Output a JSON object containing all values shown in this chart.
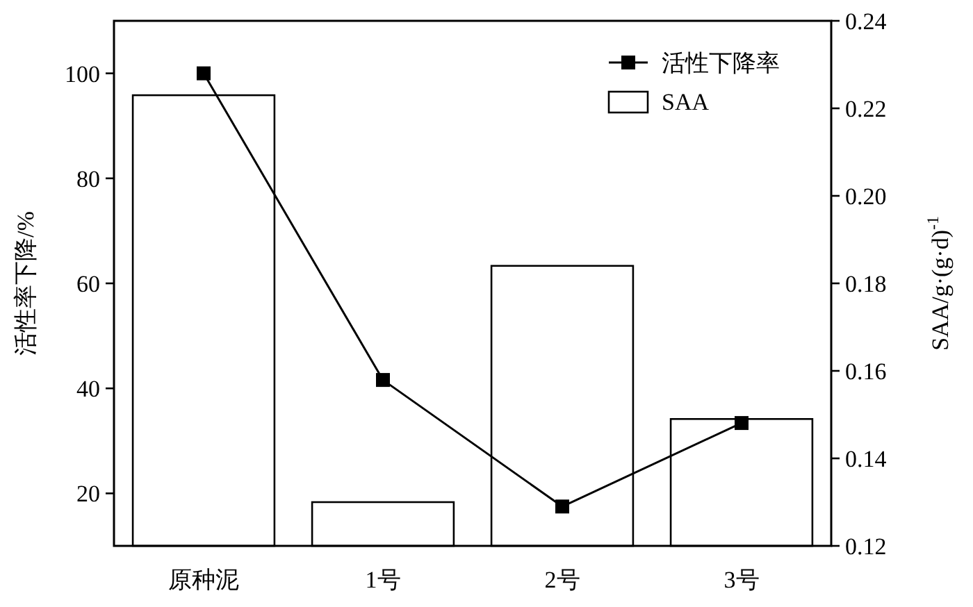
{
  "chart_data": {
    "type": "bar",
    "categories": [
      "原种泥",
      "1号",
      "2号",
      "3号"
    ],
    "ylabel": "活性率下降/%",
    "y2label": "SAA/g·(g·d)$^{-1}$",
    "ylim": [
      10,
      110
    ],
    "yticks": [
      20,
      40,
      60,
      80,
      100
    ],
    "y2lim": [
      0.12,
      0.24
    ],
    "y2ticks": [
      {
        "value": 0.12,
        "label": "0.12"
      },
      {
        "value": 0.14,
        "label": "0.14"
      },
      {
        "value": 0.16,
        "label": "0.16"
      },
      {
        "value": 0.18,
        "label": "0.18"
      },
      {
        "value": 0.2,
        "label": "0.20"
      },
      {
        "value": 0.22,
        "label": "0.22"
      },
      {
        "value": 0.24,
        "label": "0.24"
      }
    ],
    "legend": "top right",
    "grid": false,
    "series": [
      {
        "name": "活性下降率",
        "type": "line",
        "color": "#000000",
        "marker": "square",
        "values": [
          100,
          41.6,
          17.5,
          33.4
        ]
      },
      {
        "name": "SAA",
        "axis": "y2",
        "color": "#ffffff",
        "values": [
          0.223,
          0.13,
          0.184,
          0.149
        ]
      }
    ]
  }
}
